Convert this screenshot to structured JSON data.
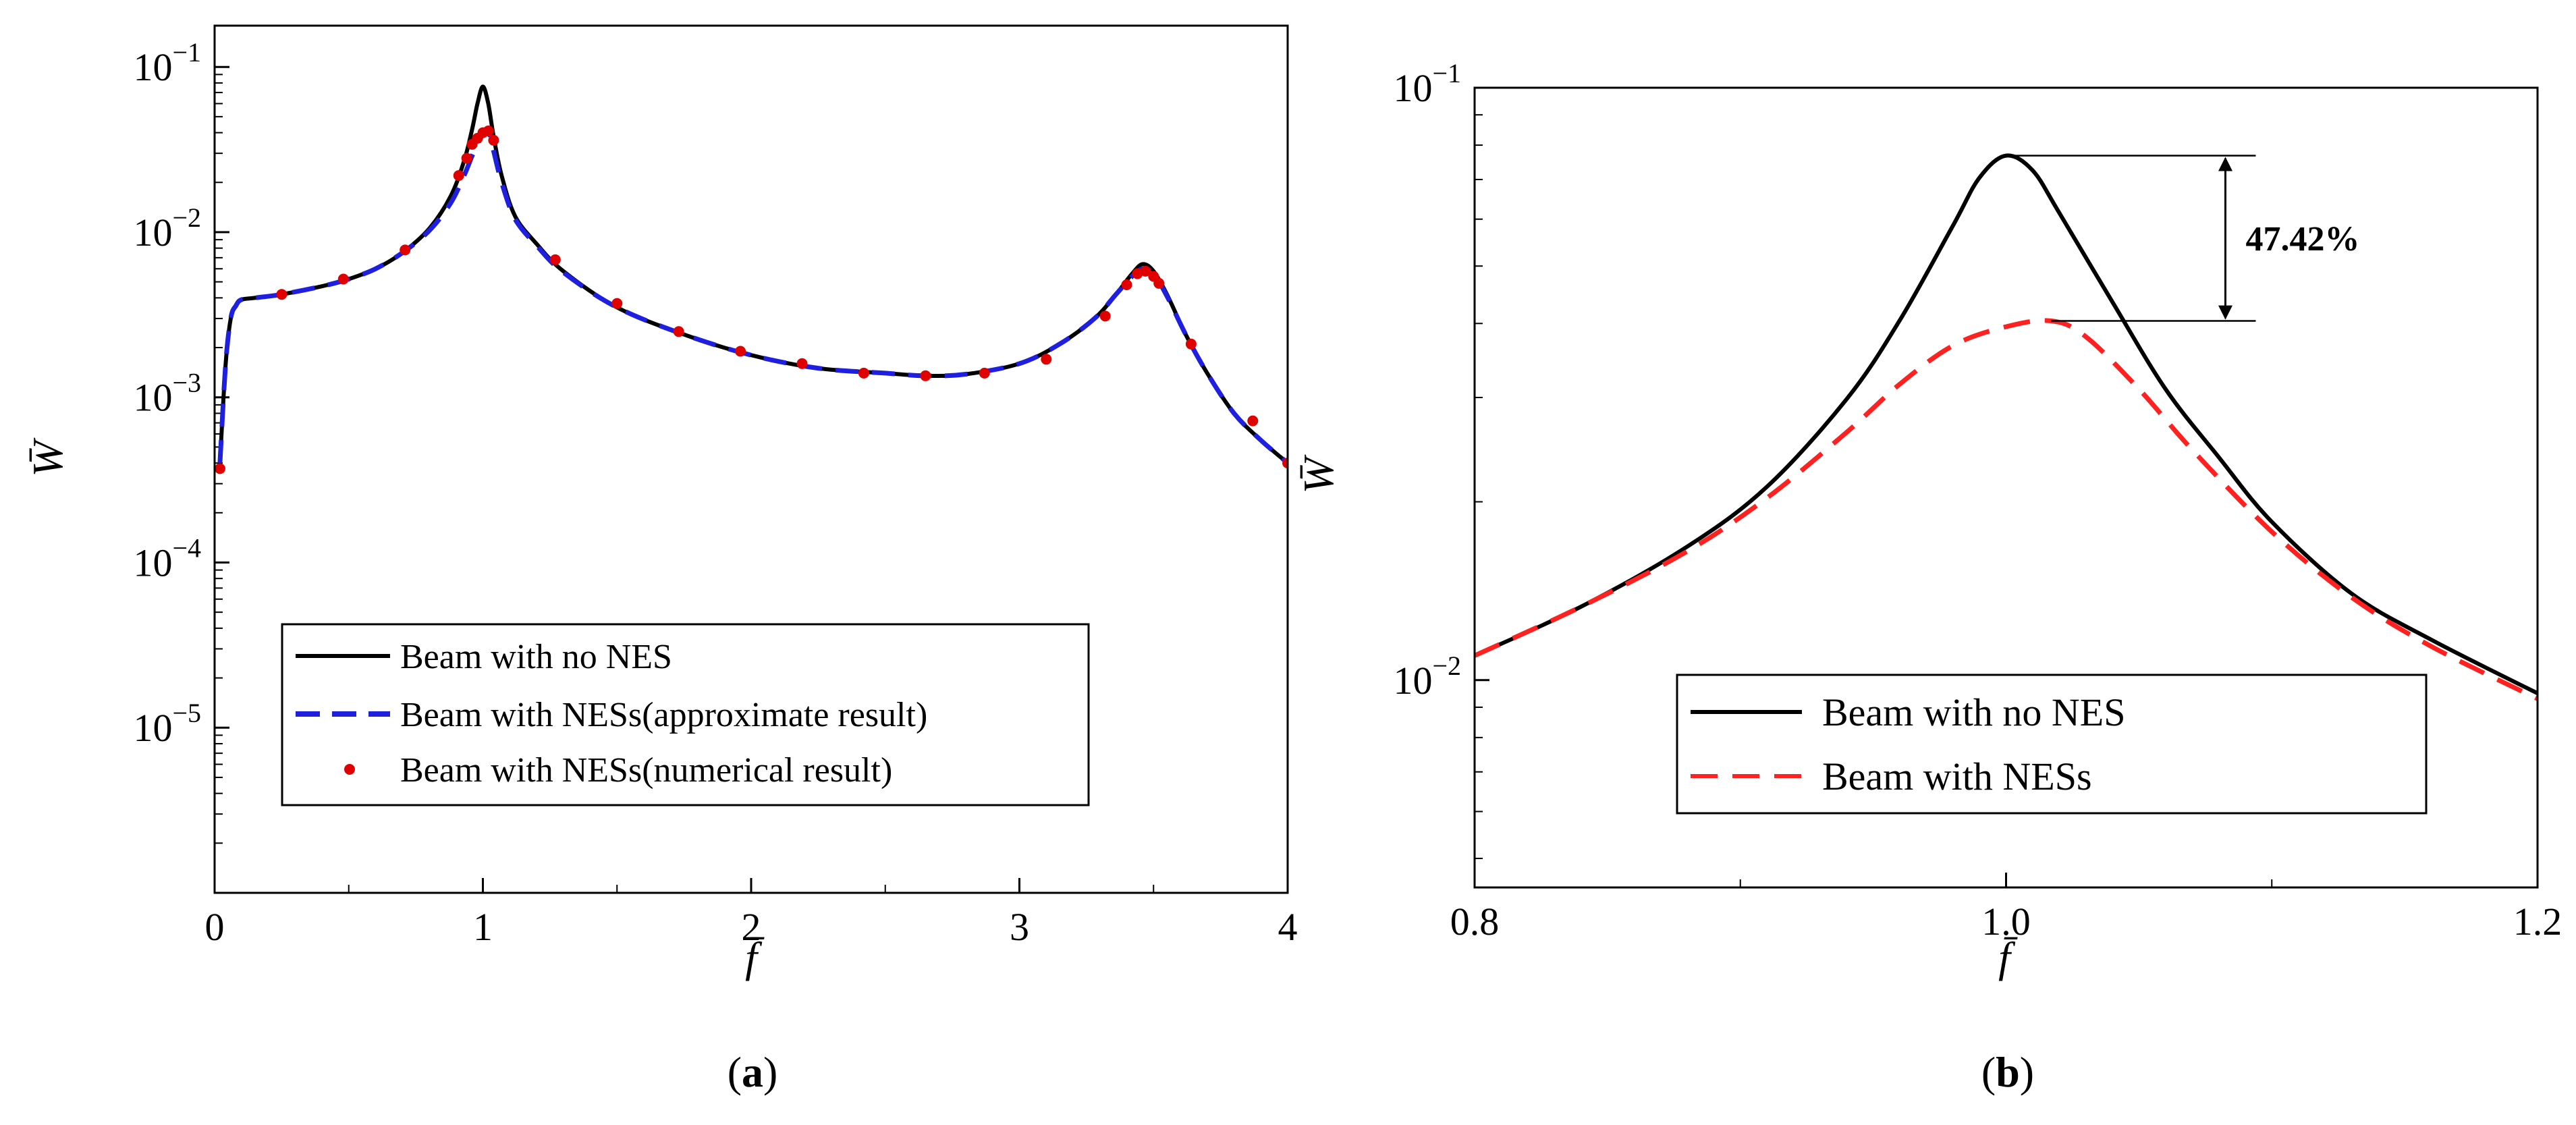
{
  "chart_data": [
    {
      "panel": "a",
      "type": "line",
      "panel_label_prefix": "(",
      "panel_label_letter": "a",
      "panel_label_suffix": ")",
      "xlabel": "f̄",
      "ylabel": "W̄",
      "xscale": "linear",
      "yscale": "log",
      "xlim": [
        0,
        4
      ],
      "ylim_log10": [
        -6,
        -0.75
      ],
      "xticks": [
        0,
        1,
        2,
        3,
        4
      ],
      "xtick_labels": [
        "0",
        "1",
        "2",
        "3",
        "4"
      ],
      "ytick_exponents": [
        -5,
        -4,
        -3,
        -2,
        -1
      ],
      "ytick_base": "10",
      "ytick_labels": [
        "−5",
        "−4",
        "−3",
        "−2",
        "−1"
      ],
      "legend_position": "lower-left",
      "series": [
        {
          "name": "Beam with no NES",
          "style": "solid",
          "color": "#000000",
          "x": [
            0.02,
            0.04,
            0.06,
            0.08,
            0.1,
            0.15,
            0.25,
            0.4,
            0.5,
            0.6,
            0.7,
            0.8,
            0.88,
            0.93,
            0.96,
            0.98,
            1.0,
            1.02,
            1.04,
            1.07,
            1.12,
            1.2,
            1.3,
            1.5,
            1.75,
            2.0,
            2.25,
            2.5,
            2.65,
            2.8,
            3.0,
            3.15,
            3.28,
            3.36,
            3.42,
            3.46,
            3.5,
            3.55,
            3.62,
            3.7,
            3.8,
            3.9,
            4.0
          ],
          "y": [
            0.0004,
            0.0015,
            0.003,
            0.0036,
            0.0039,
            0.004,
            0.0042,
            0.0047,
            0.0052,
            0.006,
            0.0075,
            0.0105,
            0.0165,
            0.027,
            0.042,
            0.06,
            0.076,
            0.06,
            0.038,
            0.022,
            0.0125,
            0.0085,
            0.0058,
            0.0035,
            0.0024,
            0.0018,
            0.0015,
            0.0014,
            0.00135,
            0.00138,
            0.0016,
            0.0021,
            0.003,
            0.0042,
            0.0056,
            0.0064,
            0.0058,
            0.0042,
            0.0024,
            0.0014,
            0.0008,
            0.00055,
            0.0004
          ]
        },
        {
          "name": "Beam with NESs(approximate result)",
          "style": "dashed",
          "color": "#1f1fe0",
          "x": [
            0.02,
            0.04,
            0.06,
            0.08,
            0.1,
            0.15,
            0.25,
            0.4,
            0.5,
            0.6,
            0.7,
            0.8,
            0.88,
            0.93,
            0.96,
            0.98,
            1.0,
            1.02,
            1.04,
            1.07,
            1.12,
            1.2,
            1.3,
            1.5,
            1.75,
            2.0,
            2.25,
            2.5,
            2.65,
            2.8,
            3.0,
            3.15,
            3.28,
            3.36,
            3.42,
            3.46,
            3.5,
            3.55,
            3.62,
            3.7,
            3.8,
            3.9,
            4.0
          ],
          "y": [
            0.0004,
            0.0015,
            0.003,
            0.0036,
            0.0039,
            0.004,
            0.0042,
            0.0047,
            0.0052,
            0.006,
            0.0075,
            0.0102,
            0.015,
            0.022,
            0.029,
            0.034,
            0.039,
            0.041,
            0.031,
            0.02,
            0.012,
            0.0083,
            0.0057,
            0.0035,
            0.0024,
            0.0018,
            0.0015,
            0.0014,
            0.00135,
            0.00138,
            0.0016,
            0.0021,
            0.003,
            0.0042,
            0.0054,
            0.006,
            0.0056,
            0.0041,
            0.0024,
            0.0014,
            0.0008,
            0.00055,
            0.0004
          ]
        },
        {
          "name": "Beam with NESs(numerical result)",
          "style": "points",
          "color": "#e00000",
          "x": [
            0.02,
            0.25,
            0.48,
            0.71,
            0.91,
            0.94,
            0.96,
            0.98,
            1.0,
            1.02,
            1.04,
            1.27,
            1.5,
            1.73,
            1.96,
            2.19,
            2.42,
            2.65,
            2.87,
            3.1,
            3.32,
            3.4,
            3.44,
            3.47,
            3.5,
            3.52,
            3.64,
            3.87,
            4.0
          ],
          "y": [
            0.00037,
            0.0042,
            0.0052,
            0.0078,
            0.022,
            0.028,
            0.034,
            0.037,
            0.04,
            0.041,
            0.036,
            0.0068,
            0.0037,
            0.0025,
            0.0019,
            0.0016,
            0.0014,
            0.00135,
            0.0014,
            0.0017,
            0.0031,
            0.0048,
            0.0056,
            0.0058,
            0.0054,
            0.0049,
            0.0021,
            0.00072,
            0.0004
          ]
        }
      ]
    },
    {
      "panel": "b",
      "type": "line",
      "panel_label_prefix": "(",
      "panel_label_letter": "b",
      "panel_label_suffix": ")",
      "xlabel": "f̄",
      "ylabel": "W̄",
      "xscale": "linear",
      "yscale": "log",
      "xlim": [
        0.8,
        1.2
      ],
      "ylim_log10": [
        -2.35,
        -1.0
      ],
      "xticks": [
        0.8,
        1.0,
        1.2
      ],
      "xtick_labels": [
        "0.8",
        "1.0",
        "1.2"
      ],
      "ytick_exponents": [
        -2,
        -1
      ],
      "ytick_base": "10",
      "ytick_labels": [
        "−2",
        "−1"
      ],
      "legend_position": "lower-center",
      "annotation": {
        "text": "47.42%",
        "upper_value": 0.0768,
        "lower_value": 0.0404,
        "x_start": 1.0,
        "x_end_upper": 1.08,
        "x_start_lower": 1.017,
        "x_end_lower": 1.08
      },
      "series": [
        {
          "name": "Beam with no NES",
          "style": "solid",
          "color": "#000000",
          "x": [
            0.8,
            0.84,
            0.88,
            0.91,
            0.94,
            0.96,
            0.98,
            0.99,
            1.0,
            1.01,
            1.02,
            1.04,
            1.06,
            1.08,
            1.1,
            1.13,
            1.16,
            1.2
          ],
          "y": [
            0.011,
            0.0133,
            0.0168,
            0.0212,
            0.0298,
            0.0405,
            0.0585,
            0.0705,
            0.0768,
            0.0725,
            0.0615,
            0.0435,
            0.031,
            0.0238,
            0.0185,
            0.014,
            0.0117,
            0.0095
          ]
        },
        {
          "name": "Beam with NESs",
          "style": "dashed",
          "color": "#ff2020",
          "x": [
            0.8,
            0.84,
            0.88,
            0.91,
            0.94,
            0.96,
            0.98,
            1.0,
            1.017,
            1.03,
            1.05,
            1.07,
            1.1,
            1.13,
            1.16,
            1.2
          ],
          "y": [
            0.011,
            0.0133,
            0.0165,
            0.0203,
            0.0262,
            0.0316,
            0.0367,
            0.0395,
            0.0404,
            0.038,
            0.031,
            0.0245,
            0.0178,
            0.0138,
            0.0114,
            0.0093
          ]
        }
      ]
    }
  ]
}
